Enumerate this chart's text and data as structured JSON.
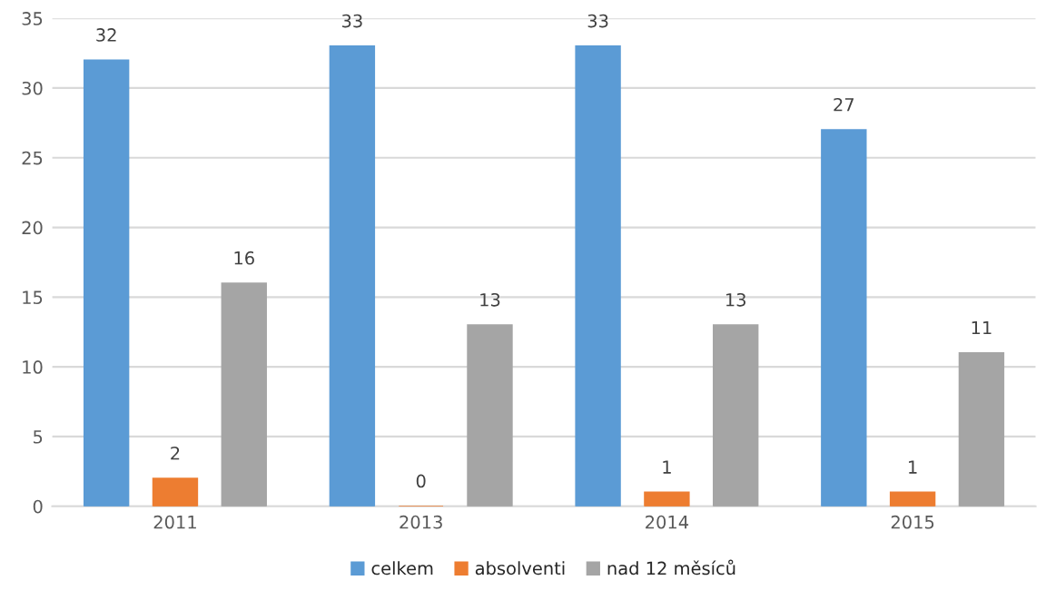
{
  "chart_data": {
    "type": "bar",
    "categories": [
      "2011",
      "2013",
      "2014",
      "2015"
    ],
    "series": [
      {
        "name": "celkem",
        "color": "#5b9bd5",
        "values": [
          32,
          33,
          33,
          27
        ]
      },
      {
        "name": "absolventi",
        "color": "#ed7d31",
        "values": [
          2,
          0,
          1,
          1
        ]
      },
      {
        "name": "nad 12 měsíců",
        "color": "#a5a5a5",
        "values": [
          16,
          13,
          13,
          11
        ]
      }
    ],
    "ylim": [
      0,
      35
    ],
    "yticks": [
      0,
      5,
      10,
      15,
      20,
      25,
      30,
      35
    ],
    "grid": "y",
    "legend": "bottom",
    "data_labels": true
  }
}
